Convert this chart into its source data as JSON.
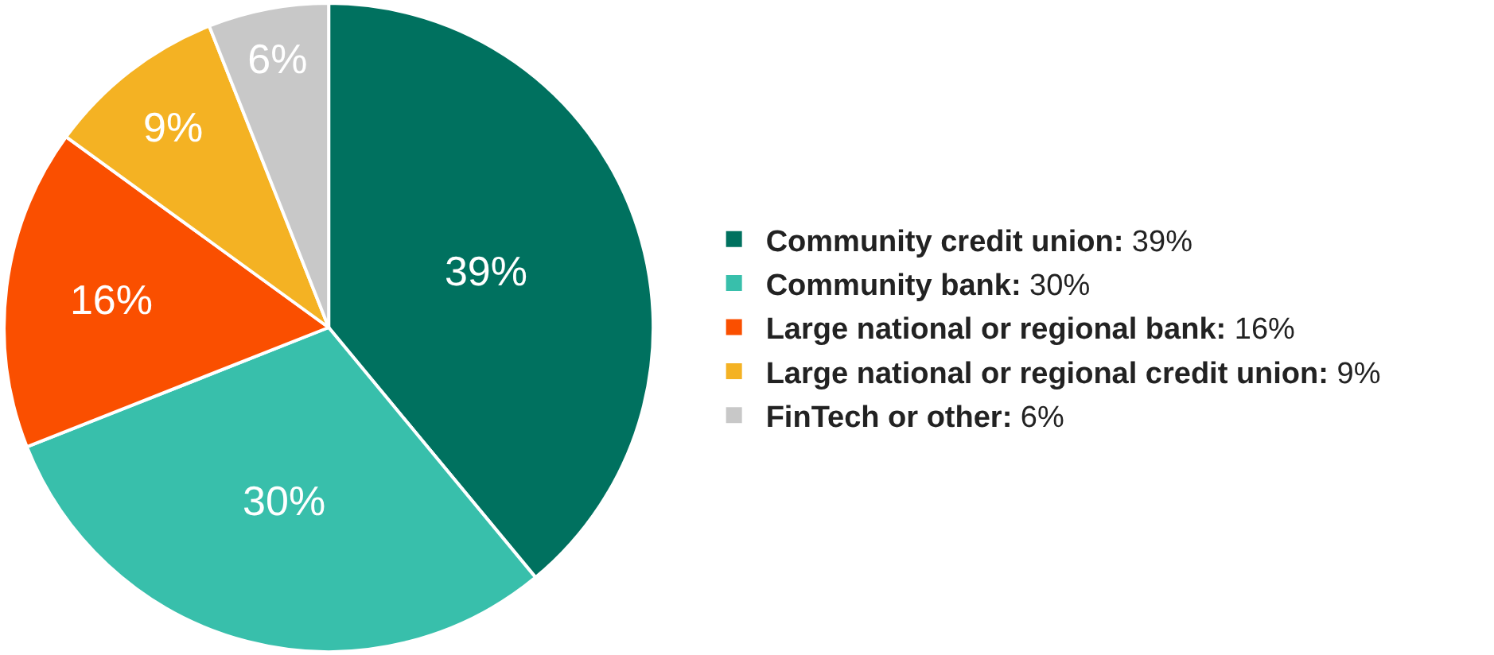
{
  "chart_data": {
    "type": "pie",
    "categories": [
      "Community credit union",
      "Community bank",
      "Large national or regional bank",
      "Large national or regional credit union",
      "FinTech or other"
    ],
    "values": [
      39,
      30,
      16,
      9,
      6
    ],
    "value_labels": [
      "39%",
      "30%",
      "16%",
      "9%",
      "6%"
    ],
    "colors": [
      "#00715f",
      "#38bfab",
      "#fa4f00",
      "#f4b223",
      "#c8c8c8"
    ],
    "legend": "right"
  }
}
